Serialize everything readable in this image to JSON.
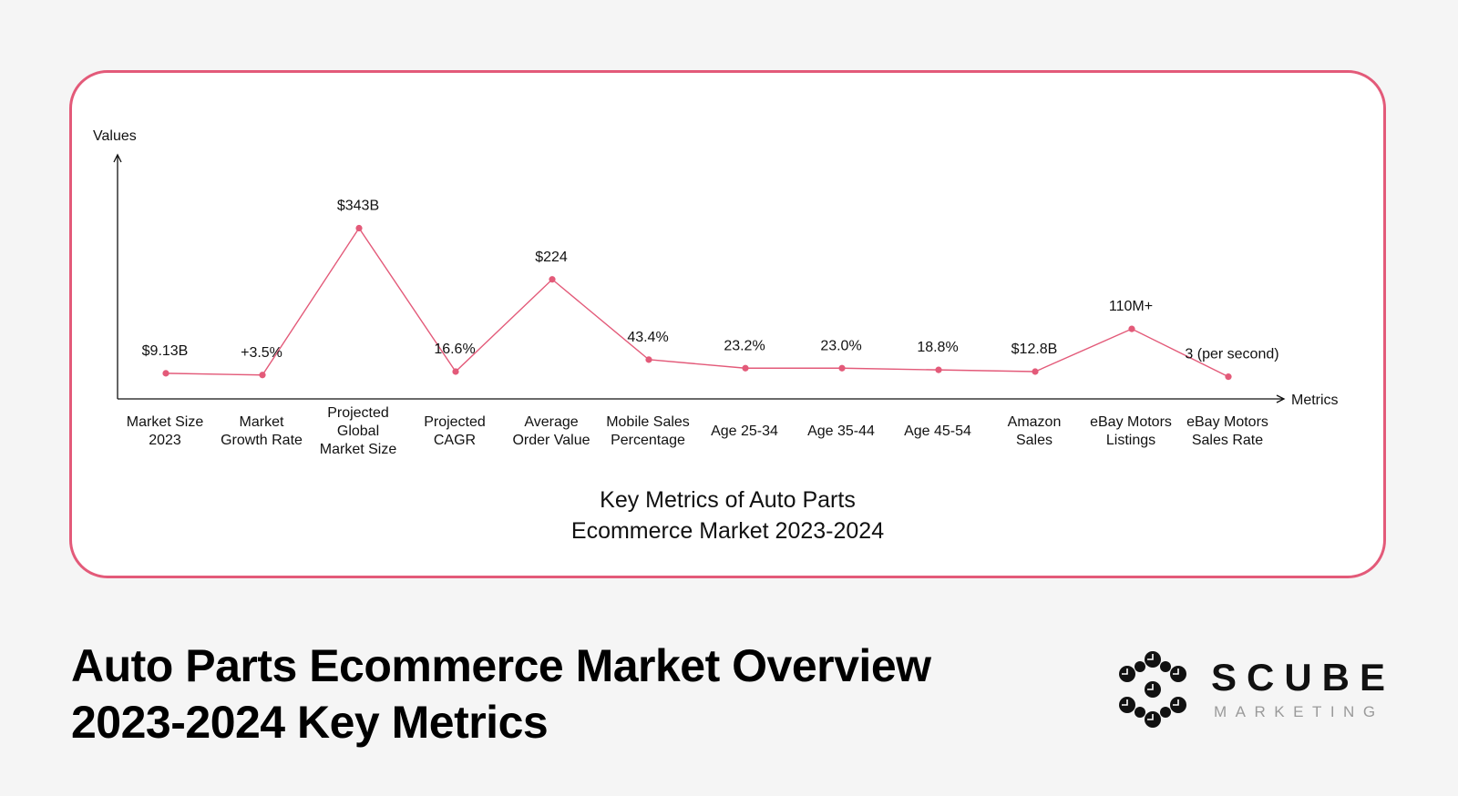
{
  "colors": {
    "accent": "#e35a79",
    "background": "#f5f5f5",
    "card": "#ffffff",
    "text": "#111111",
    "muted": "#9a9a9a"
  },
  "chart_data": {
    "type": "line",
    "title": "Key Metrics of Auto Parts\nEcommerce Market 2023-2024",
    "xlabel": "Metrics",
    "ylabel": "Values",
    "grid": false,
    "legend": "none",
    "categories": [
      "Market Size\n2023",
      "Market\nGrowth Rate",
      "Projected\nGlobal\nMarket Size",
      "Projected\nCAGR",
      "Average\nOrder Value",
      "Mobile Sales\nPercentage",
      "Age 25-34",
      "Age 35-44",
      "Age 45-54",
      "Amazon\nSales",
      "eBay Motors\nListings",
      "eBay Motors\nSales Rate"
    ],
    "labels": [
      "$9.13B",
      "+3.5%",
      "$343B",
      "16.6%",
      "$224",
      "43.4%",
      "23.2%",
      "23.0%",
      "18.8%",
      "$12.8B",
      "110M+",
      "3 (per second)"
    ],
    "values": [
      0.15,
      0.14,
      1.0,
      0.16,
      0.7,
      0.23,
      0.18,
      0.18,
      0.17,
      0.16,
      0.41,
      0.13
    ],
    "ylim": [
      0,
      1.12
    ]
  },
  "footer": {
    "title": "Auto Parts Ecommerce Market Overview\n2023-2024 Key Metrics"
  },
  "logo": {
    "name": "SCUBE",
    "sub": "MARKETING",
    "mark_icon": "scube-hexagon-mark-icon"
  }
}
